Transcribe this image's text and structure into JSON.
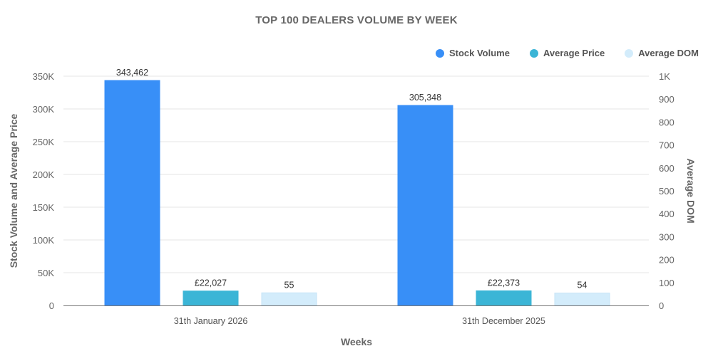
{
  "chart_data": {
    "type": "bar",
    "title": "TOP 100 DEALERS VOLUME BY WEEK",
    "xlabel": "Weeks",
    "ylabel": "Stock Volume and Average Price",
    "ylabel_right": "Average DOM",
    "categories": [
      "31th January 2026",
      "31th December 2025"
    ],
    "series": [
      {
        "name": "Stock Volume",
        "axis": "left",
        "color": "#388ff7",
        "values": [
          343462,
          305348
        ],
        "labels": [
          "343,462",
          "305,348"
        ]
      },
      {
        "name": "Average Price",
        "axis": "left",
        "color": "#3bb5d6",
        "values": [
          22027,
          22373
        ],
        "labels": [
          "£22,027",
          "£22,373"
        ]
      },
      {
        "name": "Average DOM",
        "axis": "right",
        "color": "#d3ecfb",
        "values": [
          55,
          54
        ],
        "labels": [
          "55",
          "54"
        ]
      }
    ],
    "ylim": [
      0,
      350000
    ],
    "ylim_right": [
      0,
      1000
    ],
    "yticks": [
      "0",
      "50K",
      "100K",
      "150K",
      "200K",
      "250K",
      "300K",
      "350K"
    ],
    "yticks_right": [
      "0",
      "100",
      "200",
      "300",
      "400",
      "500",
      "600",
      "700",
      "800",
      "900",
      "1K"
    ],
    "grid": true,
    "legend_position": "top-right"
  }
}
